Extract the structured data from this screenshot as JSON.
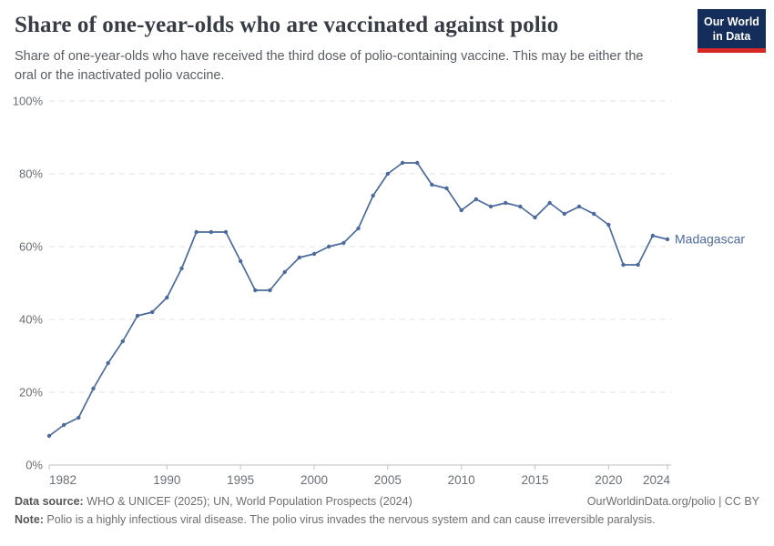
{
  "header": {
    "title": "Share of one-year-olds who are vaccinated against polio",
    "subtitle": "Share of one-year-olds who have received the third dose of polio-containing vaccine. This may be either the oral or the inactivated polio vaccine.",
    "logo_line1": "Our World",
    "logo_line2": "in Data",
    "logo_bg_color": "#142d5a",
    "logo_stripe_color": "#d82826"
  },
  "chart_data": {
    "type": "line",
    "title": "Share of one-year-olds who are vaccinated against polio",
    "xlabel": "",
    "ylabel": "",
    "xlim": [
      1982,
      2024
    ],
    "ylim": [
      0,
      100
    ],
    "x_ticks": [
      1982,
      1990,
      1995,
      2000,
      2005,
      2010,
      2015,
      2020,
      2024
    ],
    "y_ticks": [
      0,
      20,
      40,
      60,
      80,
      100
    ],
    "y_tick_suffix": "%",
    "grid": "horizontal-dashed",
    "legend_position": "end-of-line-label",
    "end_label": "Madagascar",
    "line_color": "#4c6a9c",
    "grid_color": "#e1e1e1",
    "axis_line_color": "#c2c2c2",
    "tick_text_color": "#6a6f76",
    "series": [
      {
        "name": "Madagascar",
        "color": "#4c6a9c",
        "x": [
          1982,
          1983,
          1984,
          1985,
          1986,
          1987,
          1988,
          1989,
          1990,
          1991,
          1992,
          1993,
          1994,
          1995,
          1996,
          1997,
          1998,
          1999,
          2000,
          2001,
          2002,
          2003,
          2004,
          2005,
          2006,
          2007,
          2008,
          2009,
          2010,
          2011,
          2012,
          2013,
          2014,
          2015,
          2016,
          2017,
          2018,
          2019,
          2020,
          2021,
          2022,
          2023,
          2024
        ],
        "values": [
          8,
          11,
          13,
          21,
          28,
          34,
          41,
          42,
          46,
          54,
          64,
          64,
          64,
          56,
          48,
          48,
          53,
          57,
          58,
          60,
          61,
          65,
          74,
          80,
          83,
          83,
          77,
          76,
          70,
          73,
          71,
          72,
          71,
          68,
          72,
          69,
          71,
          69,
          66,
          55,
          55,
          63,
          62
        ]
      }
    ]
  },
  "footer": {
    "datasource_label": "Data source:",
    "datasource_text": " WHO & UNICEF (2025); UN, World Population Prospects (2024)",
    "attribution": "OurWorldinData.org/polio | CC BY",
    "note_label": "Note:",
    "note_text": " Polio is a highly infectious viral disease. The polio virus invades the nervous system and can cause irreversible paralysis."
  }
}
